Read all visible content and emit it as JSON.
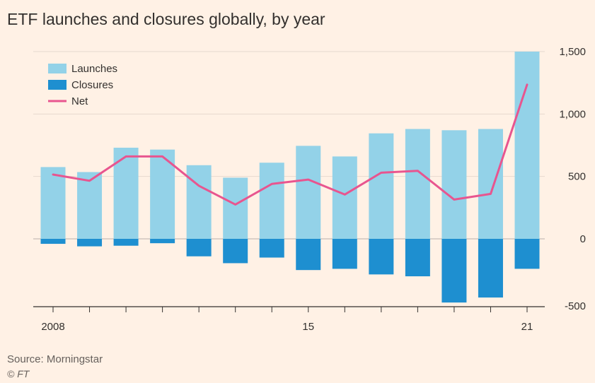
{
  "title": "ETF launches and closures globally, by year",
  "source": "Source: Morningstar",
  "credit": "© FT",
  "chart_data": {
    "type": "bar",
    "categories": [
      "2008",
      "2009",
      "2010",
      "2011",
      "2012",
      "2013",
      "2014",
      "2015",
      "2016",
      "2017",
      "2018",
      "2019",
      "2020",
      "2021"
    ],
    "x_tick_labels": [
      {
        "category": "2008",
        "label": "2008"
      },
      {
        "category": "2015",
        "label": "15"
      },
      {
        "category": "2021",
        "label": "21"
      }
    ],
    "series": [
      {
        "name": "Launches",
        "kind": "bar",
        "color": "#93d2e8",
        "values": [
          575,
          535,
          730,
          715,
          590,
          490,
          610,
          745,
          660,
          845,
          880,
          870,
          880,
          1500
        ]
      },
      {
        "name": "Closures",
        "kind": "bar",
        "color": "#1e8fd0",
        "values": [
          -40,
          -60,
          -55,
          -35,
          -140,
          -195,
          -150,
          -250,
          -240,
          -285,
          -300,
          -510,
          -470,
          -240
        ]
      },
      {
        "name": "Net",
        "kind": "line",
        "color": "#e8558f",
        "values": [
          515,
          465,
          660,
          660,
          425,
          275,
          440,
          475,
          355,
          530,
          545,
          315,
          360,
          1235
        ]
      }
    ],
    "ylim": [
      -500,
      1500
    ],
    "y_ticks": [
      {
        "value": 1500,
        "label": "1,500"
      },
      {
        "value": 1000,
        "label": "1,000"
      },
      {
        "value": 500,
        "label": "500"
      },
      {
        "value": 0,
        "label": "0"
      },
      {
        "value": -500,
        "label": "-500"
      }
    ],
    "ylabel": "",
    "xlabel": "",
    "legend_position": "top-left",
    "grid": "horizontal"
  }
}
